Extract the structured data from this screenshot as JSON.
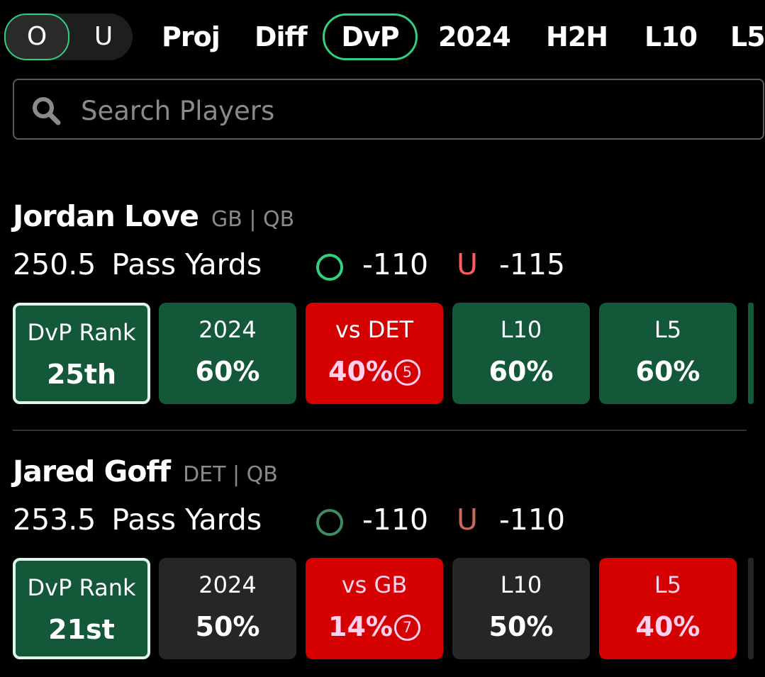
{
  "filter_bar": {
    "toggle": {
      "over_label": "O",
      "under_label": "U",
      "selected": "O"
    },
    "tabs": [
      {
        "label": "Proj",
        "active": false
      },
      {
        "label": "Diff",
        "active": false
      },
      {
        "label": "DvP",
        "active": true
      },
      {
        "label": "2024",
        "active": false
      },
      {
        "label": "H2H",
        "active": false
      },
      {
        "label": "L10",
        "active": false
      },
      {
        "label": "L5",
        "active": false
      }
    ]
  },
  "search": {
    "placeholder": "Search Players",
    "value": ""
  },
  "players": [
    {
      "name": "Jordan Love",
      "meta": "GB | QB",
      "line": "250.5",
      "prop": "Pass Yards",
      "over_label": "O",
      "over_odds": "-110",
      "under_label": "U",
      "under_odds": "-115",
      "stats": [
        {
          "label": "DvP Rank",
          "value": "25th",
          "style": "green-rank"
        },
        {
          "label": "2024",
          "value": "60%",
          "style": "green"
        },
        {
          "label": "vs DET",
          "value": "40%",
          "games": "5",
          "style": "red"
        },
        {
          "label": "L10",
          "value": "60%",
          "style": "green"
        },
        {
          "label": "L5",
          "value": "60%",
          "style": "green"
        }
      ]
    },
    {
      "name": "Jared Goff",
      "meta": "DET | QB",
      "line": "253.5",
      "prop": "Pass Yards",
      "over_label": "O",
      "over_odds": "-110",
      "under_label": "U",
      "under_odds": "-110",
      "stats": [
        {
          "label": "DvP Rank",
          "value": "21st",
          "style": "green-rank"
        },
        {
          "label": "2024",
          "value": "50%",
          "style": "dark"
        },
        {
          "label": "vs GB",
          "value": "14%",
          "games": "7",
          "style": "red"
        },
        {
          "label": "L10",
          "value": "50%",
          "style": "dark"
        },
        {
          "label": "L5",
          "value": "40%",
          "style": "red"
        }
      ]
    }
  ],
  "colors": {
    "accent_green": "#2fd07f",
    "card_green": "#135838",
    "card_red": "#d50000",
    "card_dark": "#262626",
    "under_red": "#ff5a5f"
  }
}
